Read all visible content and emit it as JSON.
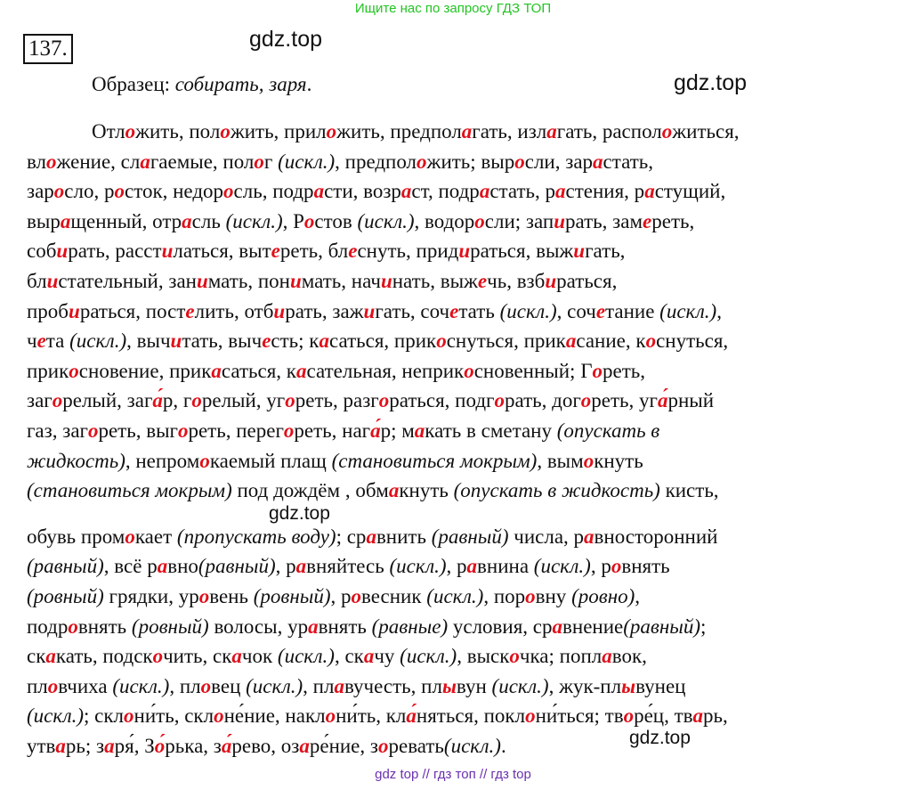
{
  "top_banner": "Ищите нас по запросу ГДЗ ТОП",
  "exercise_number": "137.",
  "watermarks": [
    "gdz.top",
    "gdz.top",
    "gdz.top",
    "gdz.top"
  ],
  "sample": {
    "label": "Образец:",
    "example": "собирать, заря"
  },
  "lines": [
    "Отл{о}жить, пол{о}жить, прил{о}жить, предпол{а}гать, изл{а}гать, распол{о}житься,",
    "вл{о}жение, сл{а}гаемые, пол{о}г [(искл.)], предпол{о}жить; выр{о}сли, зар{а}стать,",
    "зар{о}сло, р{о}сток, недор{о}сль, подр{а}сти, возр{а}ст, подр{а}стать, р{а}стения, р{а}стущий,",
    "выр{а}щенный, отр{а}сль [(искл.)], Р{о}стов [(искл.)], водор{о}сли; зап{и}рать, зам{е}реть,",
    "соб{и}рать, расст{и}латься, выт{е}реть, бл{е}снуть, прид{и}раться, выж{и}гать,",
    "бл{и}стательный, зан{и}мать, пон{и}мать, нач{и}нать, выж{е}чь, взб{и}раться,",
    "проб{и}раться, пост{е}лить, отб{и}рать, заж{и}гать, соч{е}тать [(искл.)], соч{е}тание [(искл.)],",
    "ч{е}та [(искл.)], выч{и}тать, выч{е}сть; к{а}саться, прик{о}снуться, прик{а}сание, к{о}снуться,",
    "прик{о}сновение, прик{а}саться, к{а}сательная, неприк{о}сновенный; Г{о}реть,",
    "заг{о}релый, заг{а́}р, г{о}релый, уг{о}реть, разг{о}раться, подг{о}рать, дог{о}реть, уг{а́}рный",
    "газ, заг{о}реть, выг{о}реть, перег{о}реть, наг{а́}р; м{а}кать в сметану [(опускать в]",
    "[жидкость)], непром{о}каемый плащ [(становиться мокрым)], вым{о}кнуть",
    "[(становиться мокрым)] под дождём , обм{а}кнуть [(опускать в жидкость)] кисть,",
    "",
    "обувь пром{о}кает [(пропускать воду)]; ср{а}внить [(равный)] числа, р{а}вносторонний",
    "[(равный)], всё р{а}вно[(равный)], р{а}вняйтесь [(искл.)], р{а}внина [(искл.)], р{о}внять",
    "[(ровный)] грядки, ур{о}вень [(ровный)], р{о}весник [(искл.)], пор{о}вну [(ровно)],",
    "подр{о}внять [(ровный)] волосы, ур{а}внять [(равные)] условия, ср{а}внение[(равный)];",
    "ск{а}кать, подск{о}чить, ск{а}чок [(искл.)], ск{а}чу [(искл.)], выск{о}чка; попл{а}вок,",
    "пл{о}вчиха [(искл.)], пл{о}вец [(искл.)], пл{а}вучесть, пл{ы}вун [(искл.)], жук-пл{ы}вунец",
    "[(искл.)]; скл{о}ни́ть, скл{о}не́ние, накл{о}ни́ть, кл{а́}няться, покл{о}ни́ться; тв{о}ре́ц, тв{а}рь,",
    "утв{а}рь; з{а}ря́, З{о́}рька, з{а́}рево, оз{а}ре́ние, з{о}ревать[(искл.)]."
  ],
  "bottom_banner": "gdz top  //  гдз топ  //  гдз top",
  "colors": {
    "highlight": "#e0101a",
    "top_banner": "#22c422",
    "bottom_banner": "#6a2fb0"
  }
}
